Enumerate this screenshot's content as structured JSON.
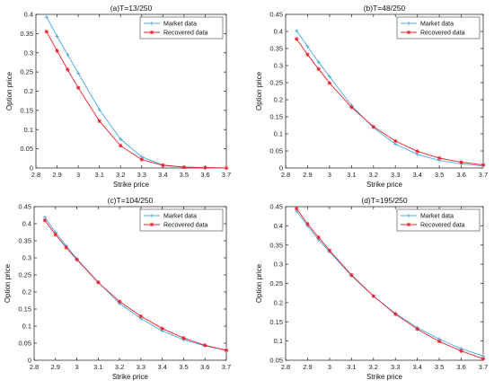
{
  "figure": {
    "colors": {
      "market": "#4aa8e0",
      "recovered": "#e8202a",
      "axis": "#333333"
    }
  },
  "chart_data": [
    {
      "type": "line",
      "title": "(a)T=13/250",
      "xlabel": "Strike price",
      "ylabel": "Option price",
      "xlim": [
        2.8,
        3.7
      ],
      "ylim": [
        0,
        0.4
      ],
      "xticks": [
        "2.8",
        "2.9",
        "3",
        "3.1",
        "3.2",
        "3.3",
        "3.4",
        "3.5",
        "3.6",
        "3.7"
      ],
      "yticks": [
        "0",
        "0.05",
        "0.1",
        "0.15",
        "0.2",
        "0.25",
        "0.3",
        "0.35",
        "0.4"
      ],
      "legend_position": "top-right",
      "series": [
        {
          "name": "Market data",
          "marker": "plus",
          "color": "#4aa8e0",
          "x": [
            2.85,
            2.9,
            2.95,
            3.0,
            3.1,
            3.2,
            3.3,
            3.4,
            3.5,
            3.6,
            3.7
          ],
          "y": [
            0.393,
            0.343,
            0.295,
            0.247,
            0.152,
            0.075,
            0.029,
            0.008,
            0.002,
            0.001,
            0.0
          ]
        },
        {
          "name": "Recovered data",
          "marker": "star",
          "color": "#e8202a",
          "x": [
            2.85,
            2.9,
            2.95,
            3.0,
            3.1,
            3.2,
            3.3,
            3.4,
            3.5,
            3.6,
            3.7
          ],
          "y": [
            0.355,
            0.305,
            0.256,
            0.209,
            0.122,
            0.058,
            0.022,
            0.007,
            0.002,
            0.001,
            0.0
          ]
        }
      ]
    },
    {
      "type": "line",
      "title": "(b)T=48/250",
      "xlabel": "Strike price",
      "ylabel": "Option price",
      "xlim": [
        2.8,
        3.7
      ],
      "ylim": [
        0,
        0.45
      ],
      "xticks": [
        "2.8",
        "2.9",
        "3",
        "3.1",
        "3.2",
        "3.3",
        "3.4",
        "3.5",
        "3.6",
        "3.7"
      ],
      "yticks": [
        "0",
        "0.05",
        "0.1",
        "0.15",
        "0.2",
        "0.25",
        "0.3",
        "0.35",
        "0.4",
        "0.45"
      ],
      "legend_position": "top-right",
      "series": [
        {
          "name": "Market data",
          "marker": "plus",
          "color": "#4aa8e0",
          "x": [
            2.85,
            2.9,
            2.95,
            3.0,
            3.1,
            3.2,
            3.3,
            3.4,
            3.5,
            3.6,
            3.7
          ],
          "y": [
            0.402,
            0.356,
            0.31,
            0.268,
            0.183,
            0.118,
            0.07,
            0.04,
            0.022,
            0.012,
            0.006
          ]
        },
        {
          "name": "Recovered data",
          "marker": "star",
          "color": "#e8202a",
          "x": [
            2.85,
            2.9,
            2.95,
            3.0,
            3.1,
            3.2,
            3.3,
            3.4,
            3.5,
            3.6,
            3.7
          ],
          "y": [
            0.378,
            0.332,
            0.29,
            0.249,
            0.178,
            0.121,
            0.079,
            0.049,
            0.029,
            0.017,
            0.009
          ]
        }
      ]
    },
    {
      "type": "line",
      "title": "(c)T=104/250",
      "xlabel": "Strike price",
      "ylabel": "Option price",
      "xlim": [
        2.8,
        3.7
      ],
      "ylim": [
        0,
        0.45
      ],
      "xticks": [
        "2.8",
        "2.9",
        "3",
        "3.1",
        "3.2",
        "3.3",
        "3.4",
        "3.5",
        "3.6",
        "3.7"
      ],
      "yticks": [
        "0",
        "0.05",
        "0.1",
        "0.15",
        "0.2",
        "0.25",
        "0.3",
        "0.35",
        "0.4",
        "0.45"
      ],
      "legend_position": "top-right",
      "series": [
        {
          "name": "Market data",
          "marker": "plus",
          "color": "#4aa8e0",
          "x": [
            2.85,
            2.9,
            2.95,
            3.0,
            3.1,
            3.2,
            3.3,
            3.4,
            3.5,
            3.6,
            3.7
          ],
          "y": [
            0.419,
            0.375,
            0.335,
            0.297,
            0.229,
            0.166,
            0.122,
            0.086,
            0.06,
            0.042,
            0.03
          ]
        },
        {
          "name": "Recovered data",
          "marker": "star",
          "color": "#e8202a",
          "x": [
            2.85,
            2.9,
            2.95,
            3.0,
            3.1,
            3.2,
            3.3,
            3.4,
            3.5,
            3.6,
            3.7
          ],
          "y": [
            0.41,
            0.368,
            0.33,
            0.295,
            0.228,
            0.172,
            0.129,
            0.093,
            0.065,
            0.044,
            0.029
          ]
        }
      ]
    },
    {
      "type": "line",
      "title": "(d)T=195/250",
      "xlabel": "Strike price",
      "ylabel": "Option price",
      "xlim": [
        2.8,
        3.7
      ],
      "ylim": [
        0.05,
        0.45
      ],
      "xticks": [
        "2.8",
        "2.9",
        "3",
        "3.1",
        "3.2",
        "3.3",
        "3.4",
        "3.5",
        "3.6",
        "3.7"
      ],
      "yticks": [
        "0.05",
        "0.1",
        "0.15",
        "0.2",
        "0.25",
        "0.3",
        "0.35",
        "0.4",
        "0.45"
      ],
      "legend_position": "top-right",
      "series": [
        {
          "name": "Market data",
          "marker": "plus",
          "color": "#4aa8e0",
          "x": [
            2.85,
            2.9,
            2.95,
            3.0,
            3.1,
            3.2,
            3.3,
            3.4,
            3.5,
            3.6,
            3.7
          ],
          "y": [
            0.438,
            0.4,
            0.364,
            0.332,
            0.27,
            0.217,
            0.172,
            0.135,
            0.105,
            0.08,
            0.061
          ]
        },
        {
          "name": "Recovered data",
          "marker": "star",
          "color": "#e8202a",
          "x": [
            2.85,
            2.9,
            2.95,
            3.0,
            3.1,
            3.2,
            3.3,
            3.4,
            3.5,
            3.6,
            3.7
          ],
          "y": [
            0.445,
            0.405,
            0.37,
            0.336,
            0.272,
            0.217,
            0.17,
            0.131,
            0.099,
            0.074,
            0.054
          ]
        }
      ]
    }
  ]
}
